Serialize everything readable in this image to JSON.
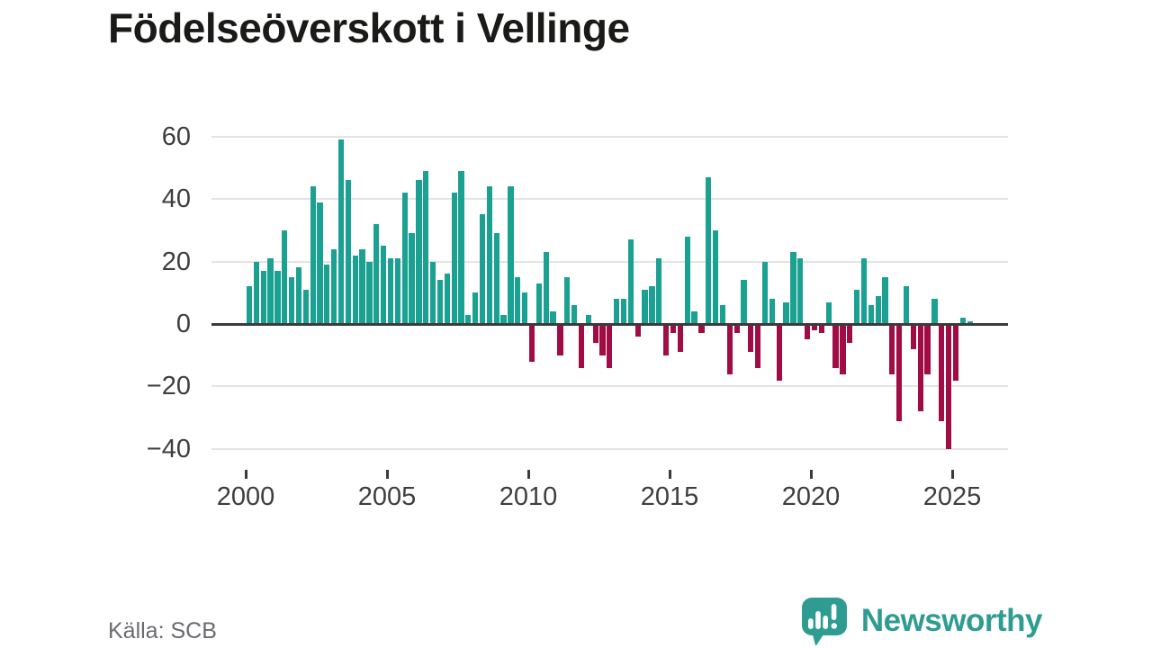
{
  "title": "Födelseöverskott i Vellinge",
  "source": "Källa: SCB",
  "logo": {
    "text": "Newsworthy"
  },
  "chart_data": {
    "type": "bar",
    "title": "Födelseöverskott i Vellinge",
    "frequency": "quarterly",
    "start_period": "2000 Q1",
    "end_period": "2025 Q3",
    "x_ticks": [
      "2000",
      "2005",
      "2010",
      "2015",
      "2020",
      "2025"
    ],
    "y_ticks": [
      {
        "label": "60",
        "value": 60
      },
      {
        "label": "40",
        "value": 40
      },
      {
        "label": "20",
        "value": 20
      },
      {
        "label": "0",
        "value": 0
      },
      {
        "label": "−20",
        "value": -20
      },
      {
        "label": "−40",
        "value": -40
      }
    ],
    "ylim": [
      -45,
      66
    ],
    "grid": true,
    "legend": "none",
    "series": [
      {
        "name": "Födelseöverskott",
        "values": [
          12,
          20,
          17,
          21,
          17,
          30,
          15,
          18,
          11,
          44,
          39,
          19,
          24,
          59,
          46,
          22,
          24,
          20,
          32,
          25,
          21,
          21,
          42,
          29,
          46,
          49,
          20,
          14,
          16,
          42,
          49,
          3,
          10,
          35,
          44,
          29,
          3,
          44,
          15,
          10,
          -12,
          13,
          23,
          4,
          -10,
          15,
          6,
          -14,
          3,
          -6,
          -10,
          -14,
          8,
          8,
          27,
          -4,
          11,
          12,
          21,
          -10,
          -3,
          -9,
          28,
          4,
          -3,
          47,
          30,
          6,
          -16,
          -3,
          14,
          -9,
          -14,
          20,
          8,
          -18,
          7,
          23,
          21,
          -5,
          -2,
          -3,
          7,
          -14,
          -16,
          -6,
          11,
          21,
          6,
          9,
          15,
          -16,
          -31,
          12,
          -8,
          -28,
          -16,
          8,
          -31,
          -40,
          -18,
          2,
          1
        ]
      }
    ],
    "colors": {
      "positive": "#1aa192",
      "negative": "#a00d45",
      "logo_teal": "#2f9c92",
      "grid": "#e3e3e3",
      "axis": "#3b3b3b"
    }
  }
}
